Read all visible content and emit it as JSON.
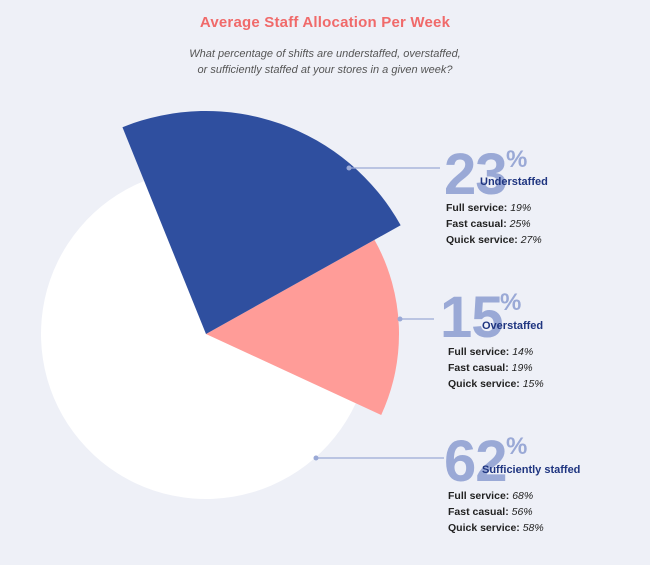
{
  "title": "Average Staff Allocation Per Week",
  "subtitle_line1": "What percentage of shifts are understaffed, overstaffed,",
  "subtitle_line2": "or sufficiently staffed at your stores in a given week?",
  "colors": {
    "understaffed": "#2f4f9f",
    "overstaffed": "#ff9c98",
    "sufficiently_staffed": "#ffffff",
    "title": "#f06a6a",
    "big_number": "#9aa9d6",
    "category": "#1f3580"
  },
  "chart_data": {
    "type": "pie",
    "title": "Average Staff Allocation Per Week",
    "categories": [
      "Understaffed",
      "Overstaffed",
      "Sufficiently staffed"
    ],
    "values": [
      23,
      15,
      62
    ],
    "unit": "%",
    "breakdown": [
      {
        "category": "Understaffed",
        "full_service": "19%",
        "fast_casual": "25%",
        "quick_service": "27%"
      },
      {
        "category": "Overstaffed",
        "full_service": "14%",
        "fast_casual": "19%",
        "quick_service": "15%"
      },
      {
        "category": "Sufficiently staffed",
        "full_service": "68%",
        "fast_casual": "56%",
        "quick_service": "58%"
      }
    ]
  },
  "callouts": [
    {
      "number": "23",
      "pct_sign": "%",
      "category": "Understaffed",
      "rows": [
        {
          "label": "Full service:",
          "value": "19%"
        },
        {
          "label": "Fast casual:",
          "value": "25%"
        },
        {
          "label": "Quick service:",
          "value": "27%"
        }
      ]
    },
    {
      "number": "15",
      "pct_sign": "%",
      "category": "Overstaffed",
      "rows": [
        {
          "label": "Full service:",
          "value": "14%"
        },
        {
          "label": "Fast casual:",
          "value": "19%"
        },
        {
          "label": "Quick service:",
          "value": "15%"
        }
      ]
    },
    {
      "number": "62",
      "pct_sign": "%",
      "category": "Sufficiently staffed",
      "rows": [
        {
          "label": "Full service:",
          "value": "68%"
        },
        {
          "label": "Fast casual:",
          "value": "56%"
        },
        {
          "label": "Quick service:",
          "value": "58%"
        }
      ]
    }
  ]
}
